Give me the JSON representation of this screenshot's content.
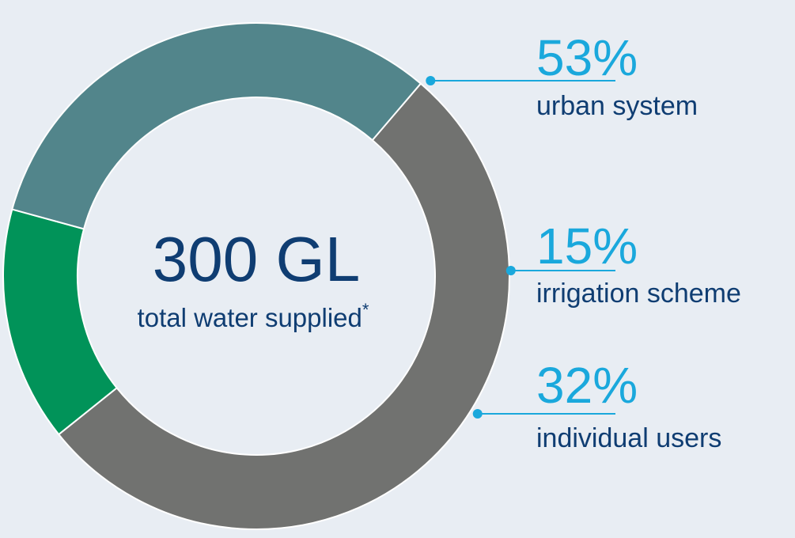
{
  "chart_data": {
    "type": "pie",
    "variant": "donut",
    "center": {
      "value": "300 GL",
      "label": "total water supplied",
      "footnote_mark": "*"
    },
    "slices": [
      {
        "label": "urban system",
        "value": 53,
        "display": "53%",
        "color": "#717270"
      },
      {
        "label": "irrigation scheme",
        "value": 15,
        "display": "15%",
        "color": "#019359"
      },
      {
        "label": "individual users",
        "value": 32,
        "display": "32%",
        "color": "#52858b"
      }
    ],
    "legend": "right",
    "leader_color": "#1aa8dc"
  }
}
